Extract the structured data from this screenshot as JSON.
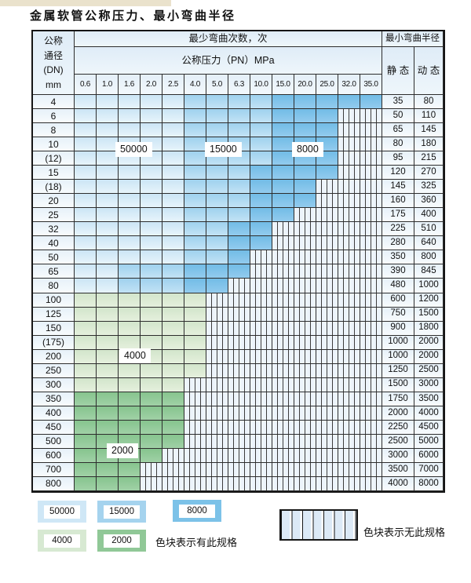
{
  "title": "金属软管公称压力、最小弯曲半径",
  "table": {
    "corner_lines": [
      "公称",
      "通径",
      "(DN)",
      "mm"
    ],
    "headers": {
      "bend_cycles": "最少弯曲次数，次",
      "bend_radius": "最小弯曲半径",
      "pressure": "公称压力（PN）MPa",
      "static": "静 态",
      "dynamic": "动 态"
    },
    "pressure_columns": [
      "0.6",
      "1.0",
      "1.6",
      "2.0",
      "2.5",
      "4.0",
      "5.0",
      "6.3",
      "10.0",
      "15.0",
      "20.0",
      "25.0",
      "32.0",
      "35.0"
    ],
    "cell_codes": {
      "L": "50000",
      "M": "15000",
      "D": "8000",
      "G": "4000",
      "H": "2000",
      "X": "no-spec"
    },
    "colors": {
      "50000": "#cfe7f6",
      "15000": "#a5d3ee",
      "8000": "#7cc2e8",
      "4000": "#d7e9d2",
      "2000": "#90c897",
      "no_spec_bg": "#edf4fb"
    },
    "rows": [
      {
        "dn": "4",
        "cells": "LLLLLMMMMDDDDD",
        "static": "35",
        "dynamic": "80"
      },
      {
        "dn": "6",
        "cells": "LLLLLMMMMDDDXX",
        "static": "50",
        "dynamic": "110"
      },
      {
        "dn": "8",
        "cells": "LLLLLMMMMDDDXX",
        "static": "65",
        "dynamic": "145"
      },
      {
        "dn": "10",
        "cells": "LLLLLMMMMDDDXX",
        "static": "80",
        "dynamic": "180"
      },
      {
        "dn": "(12)",
        "cells": "LLLLLMMMMDDDXX",
        "static": "95",
        "dynamic": "215"
      },
      {
        "dn": "15",
        "cells": "LLLLLMMMDDDDXX",
        "static": "120",
        "dynamic": "270"
      },
      {
        "dn": "(18)",
        "cells": "LLLLLMMMDDDXXX",
        "static": "145",
        "dynamic": "325"
      },
      {
        "dn": "20",
        "cells": "LLLLLMMMDDDXXX",
        "static": "160",
        "dynamic": "360"
      },
      {
        "dn": "25",
        "cells": "LLLLLMMMDDXXXX",
        "static": "175",
        "dynamic": "400"
      },
      {
        "dn": "32",
        "cells": "LLLLLMMDDXXXXX",
        "static": "225",
        "dynamic": "510"
      },
      {
        "dn": "40",
        "cells": "LLLLLMMDDXXXXX",
        "static": "280",
        "dynamic": "640"
      },
      {
        "dn": "50",
        "cells": "LLLLLMMDXXXXXX",
        "static": "350",
        "dynamic": "800"
      },
      {
        "dn": "65",
        "cells": "LLMMMDDDXXXXXX",
        "static": "390",
        "dynamic": "845"
      },
      {
        "dn": "80",
        "cells": "LLMMMDDXXXXXXX",
        "static": "480",
        "dynamic": "1000"
      },
      {
        "dn": "100",
        "cells": "GGGGGGXXXXXXXX",
        "static": "600",
        "dynamic": "1200"
      },
      {
        "dn": "125",
        "cells": "GGGGGGXXXXXXXX",
        "static": "750",
        "dynamic": "1500"
      },
      {
        "dn": "150",
        "cells": "GGGGGGXXXXXXXX",
        "static": "900",
        "dynamic": "1800"
      },
      {
        "dn": "(175)",
        "cells": "GGGGGGXXXXXXXX",
        "static": "1000",
        "dynamic": "2000"
      },
      {
        "dn": "200",
        "cells": "GGGGGGXXXXXXXX",
        "static": "1000",
        "dynamic": "2000"
      },
      {
        "dn": "250",
        "cells": "GGGGGGXXXXXXXX",
        "static": "1250",
        "dynamic": "2500"
      },
      {
        "dn": "300",
        "cells": "GGGGGXXXXXXXXX",
        "static": "1500",
        "dynamic": "3000"
      },
      {
        "dn": "350",
        "cells": "HHHHHXXXXXXXXX",
        "static": "1750",
        "dynamic": "3500"
      },
      {
        "dn": "400",
        "cells": "HHHHHXXXXXXXXX",
        "static": "2000",
        "dynamic": "4000"
      },
      {
        "dn": "450",
        "cells": "HHHHHXXXXXXXXX",
        "static": "2250",
        "dynamic": "4500"
      },
      {
        "dn": "500",
        "cells": "HHHHHXXXXXXXXX",
        "static": "2500",
        "dynamic": "5000"
      },
      {
        "dn": "600",
        "cells": "HHHHXXXXXXXXXX",
        "static": "3000",
        "dynamic": "6000"
      },
      {
        "dn": "700",
        "cells": "HHHXXXXXXXXXXX",
        "static": "3500",
        "dynamic": "7000"
      },
      {
        "dn": "800",
        "cells": "HHHXXXXXXXXXXX",
        "static": "4000",
        "dynamic": "8000"
      }
    ],
    "overlay_labels": [
      {
        "text": "50000",
        "pos": "lbl-50000"
      },
      {
        "text": "15000",
        "pos": "lbl-15000"
      },
      {
        "text": "8000",
        "pos": "lbl-8000"
      },
      {
        "text": "4000",
        "pos": "lbl-4000"
      },
      {
        "text": "2000",
        "pos": "lbl-2000"
      }
    ]
  },
  "legend": {
    "items": [
      {
        "value": "50000",
        "type": "L"
      },
      {
        "value": "15000",
        "type": "M"
      },
      {
        "value": "8000",
        "type": "D"
      },
      {
        "value": "4000",
        "type": "G"
      },
      {
        "value": "2000",
        "type": "H"
      }
    ],
    "has_spec_note": "色块表示有此规格",
    "no_spec_note": "色块表示无此规格"
  }
}
